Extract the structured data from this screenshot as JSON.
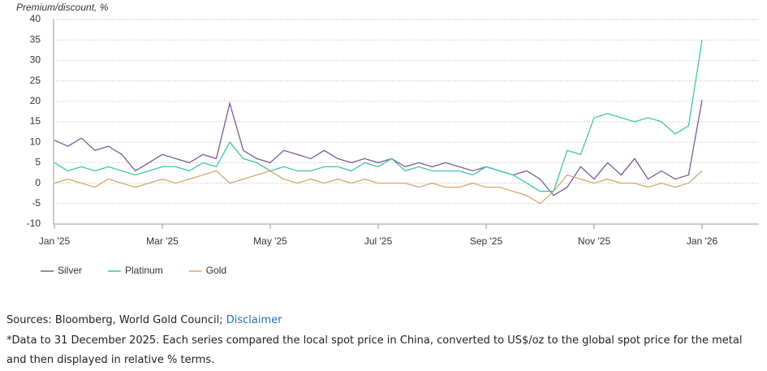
{
  "chart_data": {
    "type": "line",
    "y_label": "Premium/discount, %",
    "categories": [
      "Jan '25",
      null,
      null,
      null,
      null,
      null,
      null,
      null,
      "Mar '25",
      null,
      null,
      null,
      null,
      null,
      null,
      null,
      "May '25",
      null,
      null,
      null,
      null,
      null,
      null,
      null,
      "Jul '25",
      null,
      null,
      null,
      null,
      null,
      null,
      null,
      "Sep '25",
      null,
      null,
      null,
      null,
      null,
      null,
      null,
      "Nov '25",
      null,
      null,
      null,
      null,
      null,
      null,
      null,
      "Jan '26"
    ],
    "series": [
      {
        "name": "Silver",
        "color": "#7b5a9c",
        "values": [
          10.5,
          9,
          11,
          8,
          9,
          7,
          3,
          5,
          7,
          6,
          5,
          7,
          6,
          19.5,
          8,
          6,
          5,
          8,
          7,
          6,
          8,
          6,
          5,
          6,
          5,
          6,
          4,
          5,
          4,
          5,
          4,
          3,
          4,
          3,
          2,
          3,
          1,
          -3,
          -1,
          4,
          1,
          5,
          2,
          6,
          1,
          3,
          1,
          2,
          20.3
        ]
      },
      {
        "name": "Platinum",
        "color": "#3cc8a0",
        "values": [
          5,
          3,
          4,
          3,
          4,
          3,
          2,
          3,
          4,
          4,
          3,
          5,
          4,
          10,
          6,
          5,
          3,
          4,
          3,
          3,
          4,
          4,
          3,
          5,
          4,
          6,
          3,
          4,
          3,
          3,
          3,
          2,
          4,
          3,
          2,
          0,
          -2,
          -2,
          8,
          7,
          16,
          17,
          16,
          15,
          16,
          15,
          12,
          14,
          35
        ]
      },
      {
        "name": "Gold",
        "color": "#d4aa6e",
        "values": [
          0,
          1,
          0,
          -1,
          1,
          0,
          -1,
          0,
          1,
          0,
          1,
          2,
          3,
          0,
          1,
          2,
          3,
          1,
          0,
          1,
          0,
          1,
          0,
          1,
          0,
          0,
          0,
          -1,
          0,
          -1,
          -1,
          0,
          -1,
          -1,
          -2,
          -3,
          -5,
          -2,
          2,
          1,
          0,
          1,
          0,
          0,
          -1,
          0,
          -1,
          0,
          3
        ]
      }
    ],
    "ylim": [
      -10,
      40
    ],
    "yticks": [
      -10,
      -5,
      0,
      5,
      10,
      15,
      20,
      25,
      30,
      35,
      40
    ],
    "grid": true,
    "legend": "bottom-left"
  },
  "footer": {
    "sources": "Sources: Bloomberg, World Gold Council;",
    "link": "Disclaimer",
    "note": "*Data to 31 December 2025. Each series compared the local spot price in China, converted to US$/oz to the global spot price for the metal and then displayed in relative % terms."
  }
}
